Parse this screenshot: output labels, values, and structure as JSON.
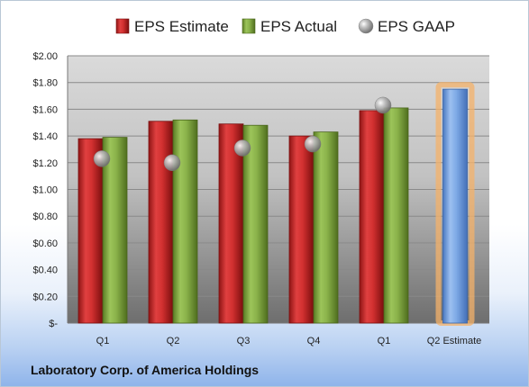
{
  "company": "Laboratory Corp. of America Holdings",
  "chart_data": {
    "type": "bar",
    "categories": [
      "Q1",
      "Q2",
      "Q3",
      "Q4",
      "Q1",
      "Q2 Estimate"
    ],
    "series": [
      {
        "name": "EPS Estimate",
        "color": "#c82a2a",
        "values": [
          1.38,
          1.51,
          1.49,
          1.4,
          1.59,
          null
        ]
      },
      {
        "name": "EPS Actual",
        "color": "#80a83e",
        "values": [
          1.39,
          1.52,
          1.48,
          1.43,
          1.61,
          null
        ]
      },
      {
        "name": "EPS GAAP",
        "color": "#a9a9a9",
        "marker": "sphere",
        "values": [
          1.23,
          1.2,
          1.31,
          1.34,
          1.63,
          null
        ]
      },
      {
        "name": "",
        "color": "#6f9ee0",
        "highlight": "#f4b26a",
        "values": [
          null,
          null,
          null,
          null,
          null,
          1.75
        ]
      }
    ],
    "y_ticks": [
      "$-",
      "$0.20",
      "$0.40",
      "$0.60",
      "$0.80",
      "$1.00",
      "$1.20",
      "$1.40",
      "$1.60",
      "$1.80",
      "$2.00"
    ],
    "ylim": [
      0,
      2.0
    ],
    "grid": true,
    "legend_position": "top"
  }
}
